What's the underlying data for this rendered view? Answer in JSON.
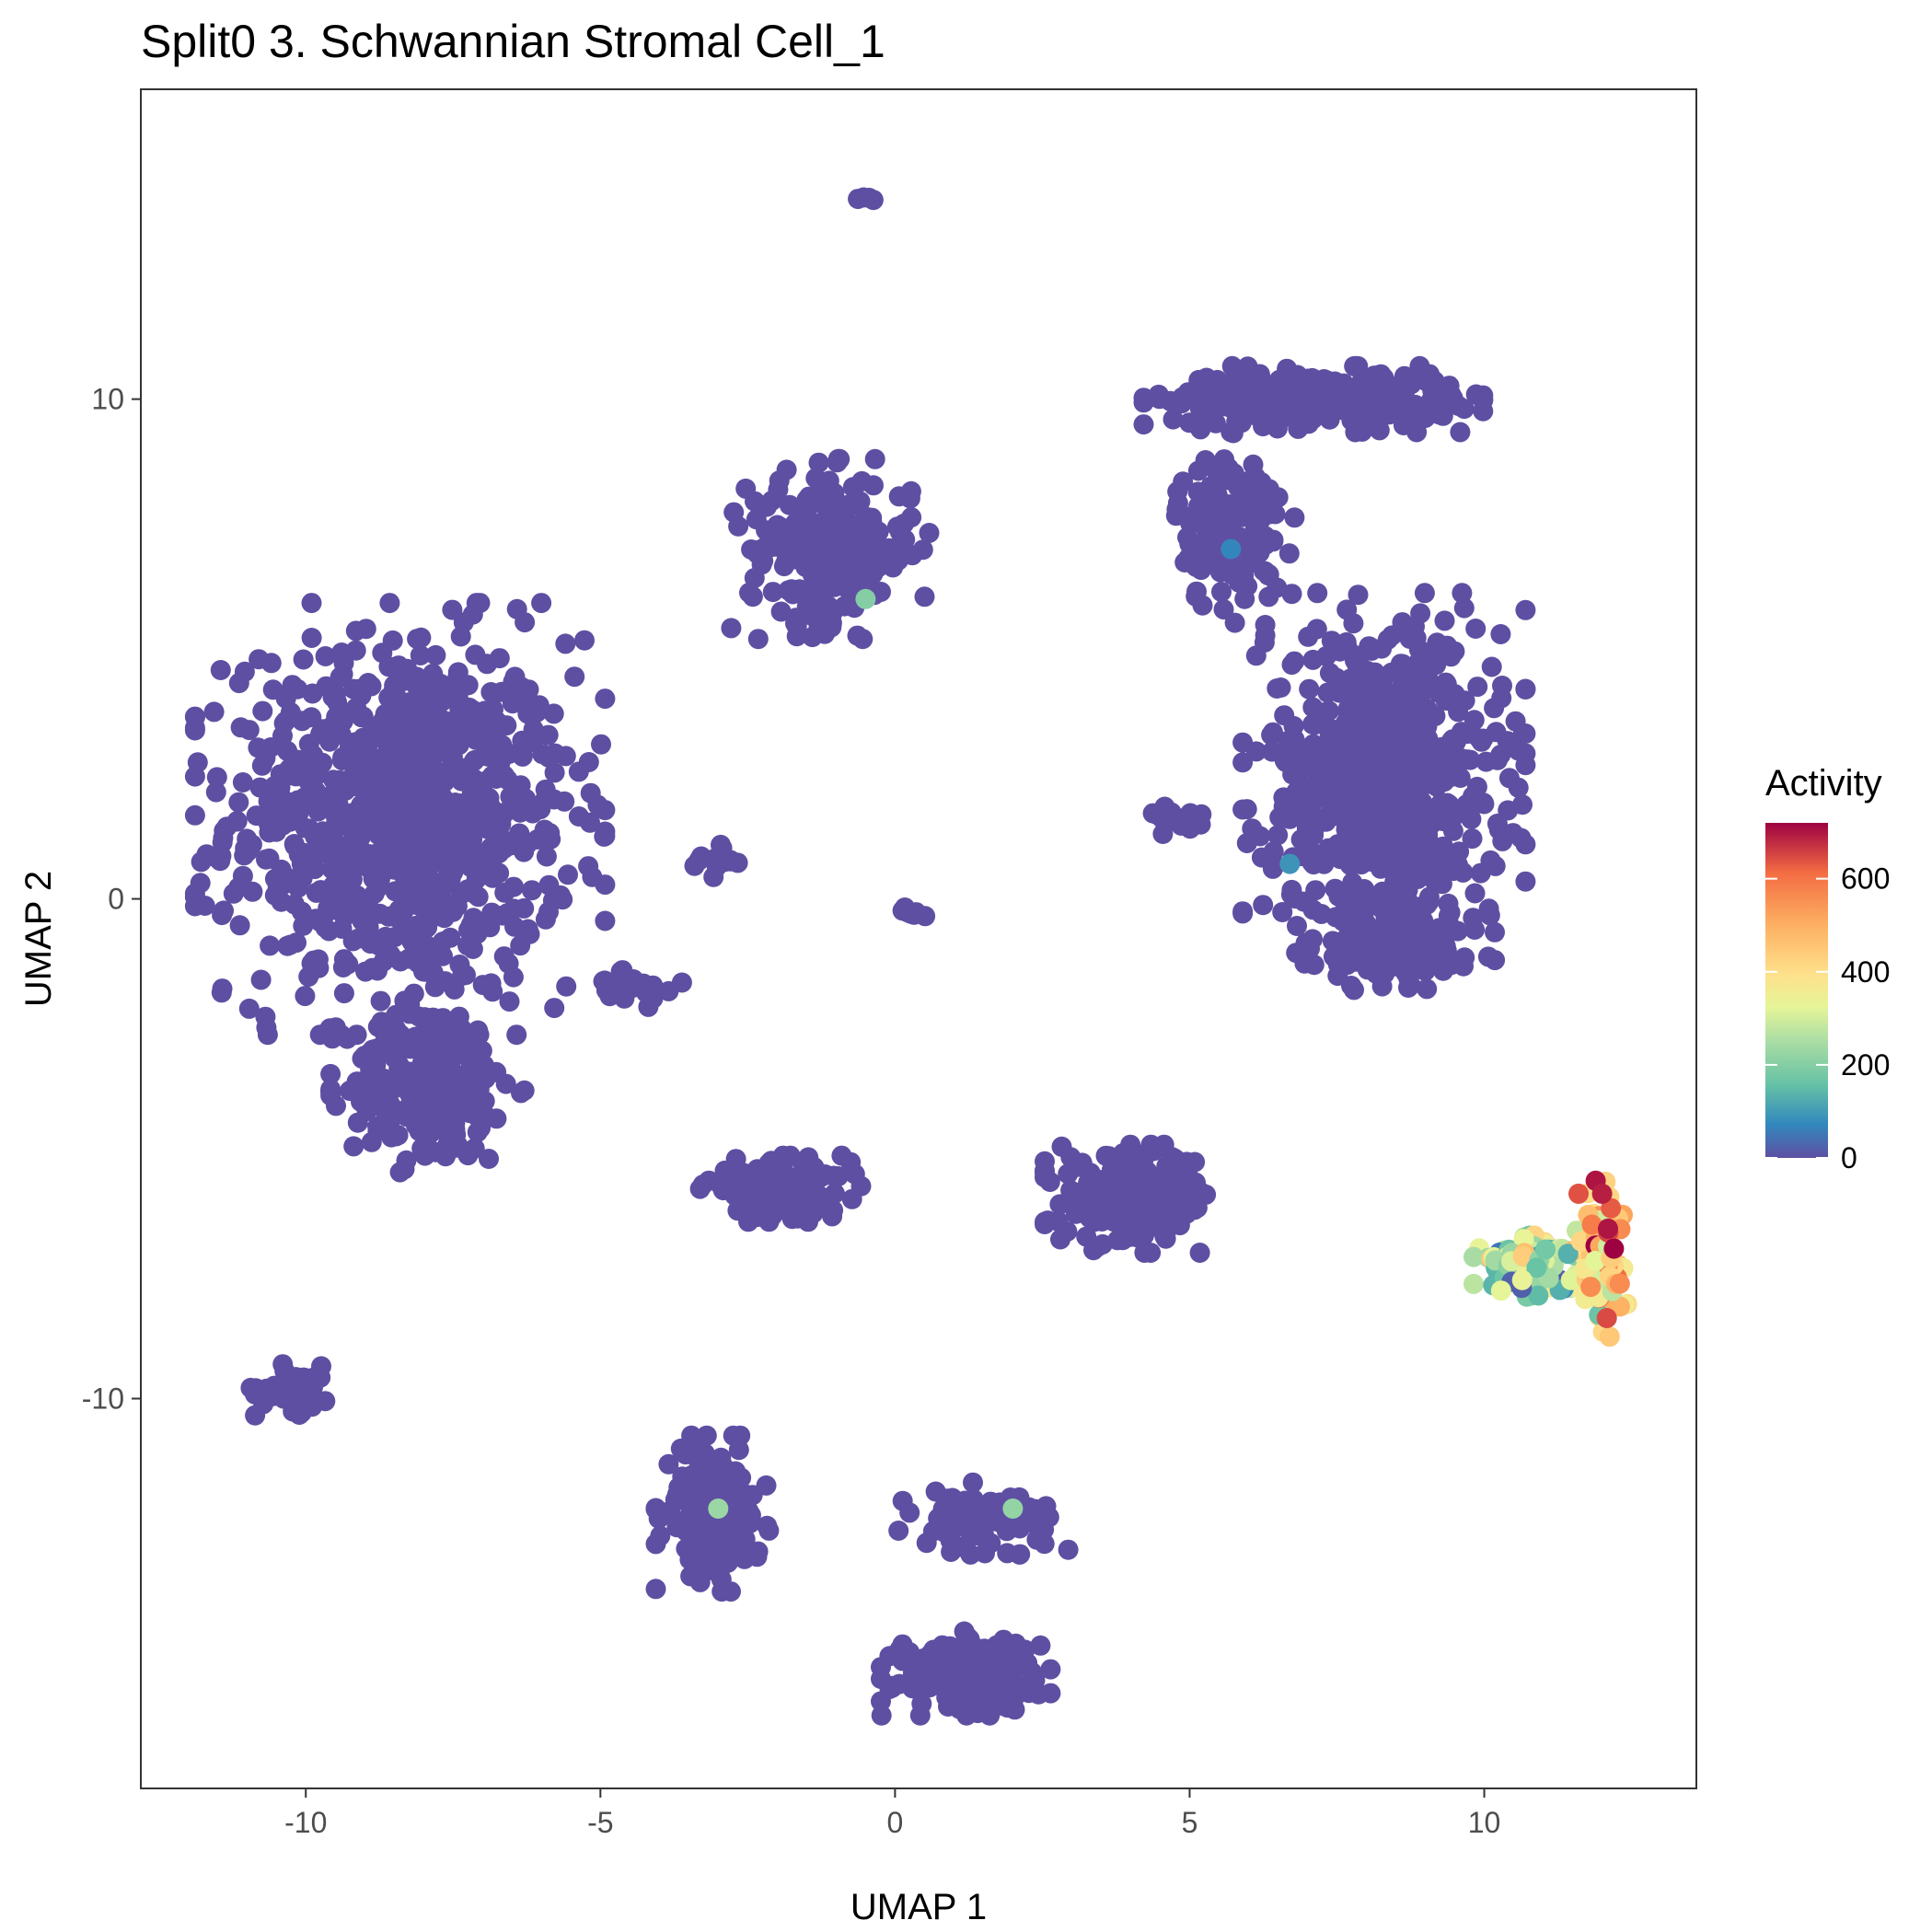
{
  "chart_data": {
    "type": "scatter",
    "title": "Split0 3. Schwannian Stromal Cell_1",
    "xlabel": "UMAP 1",
    "ylabel": "UMAP 2",
    "xlim": [
      -12.8,
      13.6
    ],
    "ylim": [
      -17.8,
      16.2
    ],
    "x_ticks": [
      -10,
      -5,
      0,
      5,
      10
    ],
    "x_tick_labels": [
      "-10",
      "-5",
      "0",
      "5",
      "10"
    ],
    "y_ticks": [
      -10,
      0,
      10
    ],
    "y_tick_labels": [
      "-10",
      "0",
      "10"
    ],
    "grid": false,
    "legend": {
      "title": "Activity",
      "position": "right",
      "range": [
        0,
        720
      ],
      "ticks": [
        0,
        200,
        400,
        600
      ],
      "tick_labels": [
        "0",
        "200",
        "400",
        "600"
      ],
      "colormap": "Spectral (reversed)"
    },
    "clusters": [
      {
        "name": "upper-left large",
        "cx": -8.4,
        "cy": 1.6,
        "rx": 2.9,
        "ry": 3.6,
        "n": 900,
        "activity": 0
      },
      {
        "name": "left lower extension",
        "cx": -7.9,
        "cy": -3.7,
        "rx": 1.4,
        "ry": 1.6,
        "n": 240,
        "activity": 0
      },
      {
        "name": "far left bottom",
        "cx": -10.2,
        "cy": -9.8,
        "rx": 0.65,
        "ry": 0.45,
        "n": 60,
        "activity": 0
      },
      {
        "name": "upper-center",
        "cx": -1.1,
        "cy": 7.0,
        "rx": 1.4,
        "ry": 1.5,
        "n": 230,
        "activity": 0
      },
      {
        "name": "top tiny",
        "cx": -0.5,
        "cy": 14.0,
        "rx": 0.18,
        "ry": 0.18,
        "n": 4,
        "activity": 0
      },
      {
        "name": "upper-right arc",
        "cx": 7.1,
        "cy": 10.0,
        "rx": 2.4,
        "ry": 0.55,
        "n": 320,
        "activity": 0
      },
      {
        "name": "upper-right arm",
        "cx": 5.7,
        "cy": 7.4,
        "rx": 0.9,
        "ry": 1.6,
        "n": 140,
        "activity": 0
      },
      {
        "name": "right large",
        "cx": 8.3,
        "cy": 2.4,
        "rx": 2.0,
        "ry": 3.1,
        "n": 700,
        "activity": 0
      },
      {
        "name": "right lower lobe",
        "cx": 8.5,
        "cy": -0.9,
        "rx": 1.4,
        "ry": 0.9,
        "n": 150,
        "activity": 0
      },
      {
        "name": "center-left small",
        "cx": -2.0,
        "cy": -5.8,
        "rx": 1.2,
        "ry": 0.55,
        "n": 130,
        "activity": 0
      },
      {
        "name": "center-right",
        "cx": 4.1,
        "cy": -6.0,
        "rx": 1.3,
        "ry": 0.9,
        "n": 240,
        "activity": 0
      },
      {
        "name": "bottom-left",
        "cx": -3.1,
        "cy": -12.3,
        "rx": 0.8,
        "ry": 1.3,
        "n": 160,
        "activity": 0
      },
      {
        "name": "bottom-center upper",
        "cx": 1.5,
        "cy": -12.4,
        "rx": 1.2,
        "ry": 0.6,
        "n": 90,
        "activity": 0
      },
      {
        "name": "bottom-center lower",
        "cx": 1.2,
        "cy": -15.5,
        "rx": 1.2,
        "ry": 0.7,
        "n": 200,
        "activity": 0
      },
      {
        "name": "mid scattered",
        "cx": -4.5,
        "cy": -1.8,
        "rx": 0.9,
        "ry": 0.4,
        "n": 25,
        "activity": 0
      },
      {
        "name": "left mid scattered",
        "cx": -3.0,
        "cy": 0.8,
        "rx": 0.4,
        "ry": 0.4,
        "n": 12,
        "activity": 0
      },
      {
        "name": "center dot",
        "cx": 0.3,
        "cy": -0.3,
        "rx": 0.25,
        "ry": 0.15,
        "n": 8,
        "activity": 0
      },
      {
        "name": "right small left",
        "cx": 4.9,
        "cy": 1.6,
        "rx": 0.5,
        "ry": 0.25,
        "n": 18,
        "activity": 0
      },
      {
        "name": "lower-right active ring",
        "cx": 10.9,
        "cy": -7.3,
        "rx": 0.9,
        "ry": 0.55,
        "n": 140,
        "activity": 240
      },
      {
        "name": "lower-right active arm",
        "cx": 12.0,
        "cy": -7.2,
        "rx": 0.35,
        "ry": 1.3,
        "n": 70,
        "activity": 420
      }
    ],
    "highlighted_points": [
      {
        "x": 12.1,
        "y": -6.6,
        "activity": 700
      },
      {
        "x": 12.2,
        "y": -7.0,
        "activity": 720
      },
      {
        "x": 12.0,
        "y": -5.9,
        "activity": 690
      },
      {
        "x": 11.6,
        "y": -5.9,
        "activity": 640
      },
      {
        "x": 12.3,
        "y": -7.7,
        "activity": 560
      },
      {
        "x": -0.5,
        "y": 6.0,
        "activity": 200
      },
      {
        "x": -3.0,
        "y": -12.2,
        "activity": 230
      },
      {
        "x": 2.0,
        "y": -12.2,
        "activity": 220
      },
      {
        "x": 6.7,
        "y": 0.7,
        "activity": 90
      },
      {
        "x": 5.7,
        "y": 7.0,
        "activity": 70
      }
    ]
  }
}
